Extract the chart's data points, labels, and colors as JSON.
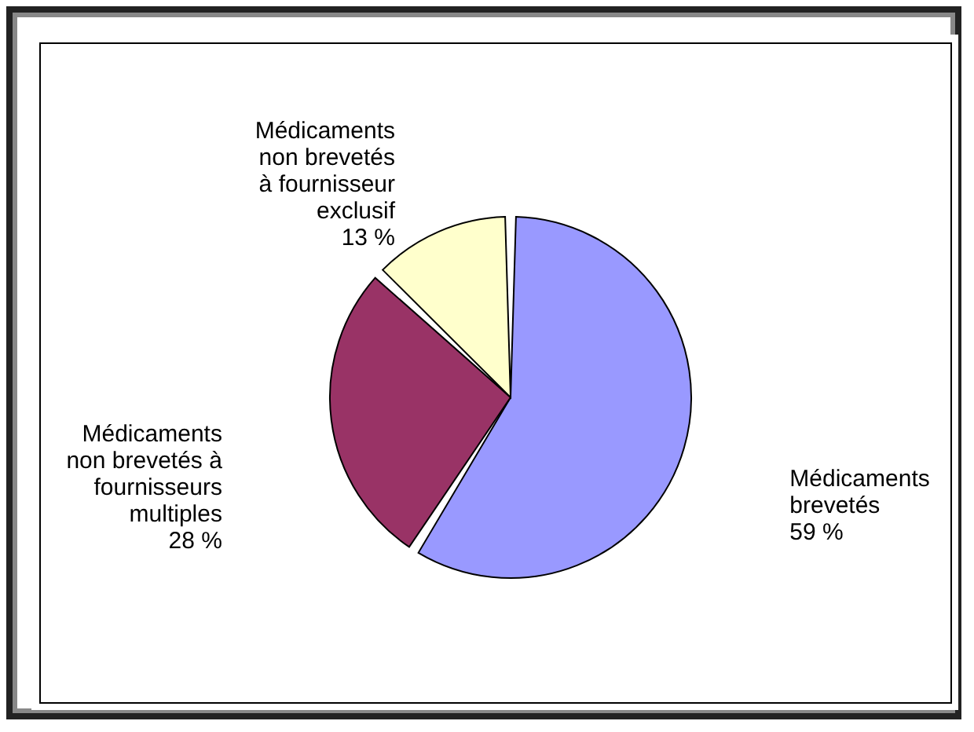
{
  "chart_data": {
    "type": "pie",
    "categories": [
      "Médicaments\nbrevetés",
      "Médicaments\nnon brevetés à\nfournisseurs\nmultiples",
      "Médicaments\nnon brevetés\nà fournisseur\nexclusif"
    ],
    "values": [
      59,
      28,
      13
    ],
    "value_labels": [
      "59 %",
      "28 %",
      "13 %"
    ],
    "colors": [
      "#9999ff",
      "#993366",
      "#ffffcc"
    ],
    "legend": false
  }
}
